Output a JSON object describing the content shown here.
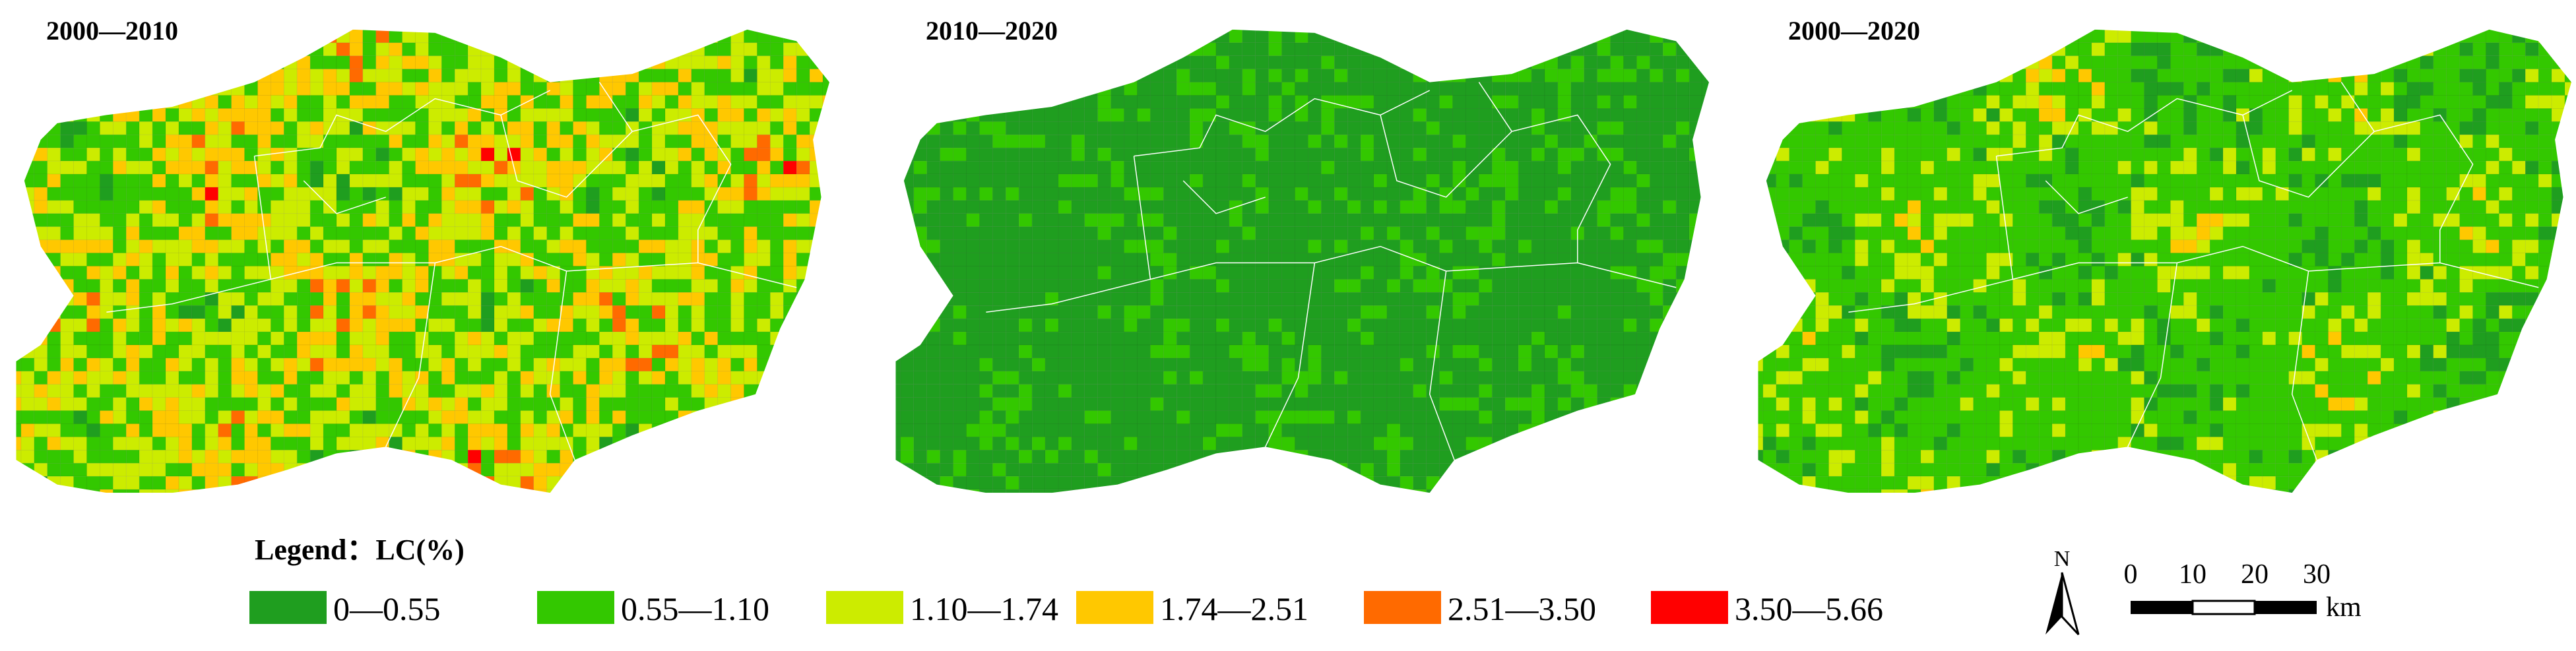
{
  "panels": [
    {
      "title": "2000—2010"
    },
    {
      "title": "2010—2020"
    },
    {
      "title": "2000—2020"
    }
  ],
  "legend": {
    "title": "Legend：LC(%)",
    "classes": [
      {
        "label": "0—0.55",
        "color": "#1f9e1f"
      },
      {
        "label": "0.55—1.10",
        "color": "#33c800"
      },
      {
        "label": "1.10—1.74",
        "color": "#ccec00"
      },
      {
        "label": "1.74—2.51",
        "color": "#ffc800"
      },
      {
        "label": "2.51—3.50",
        "color": "#ff6a00"
      },
      {
        "label": "3.50—5.66",
        "color": "#ff0000"
      }
    ]
  },
  "north_arrow": "N",
  "scale_bar": {
    "ticks": [
      "0",
      "10",
      "20",
      "30"
    ],
    "unit": "km"
  }
}
